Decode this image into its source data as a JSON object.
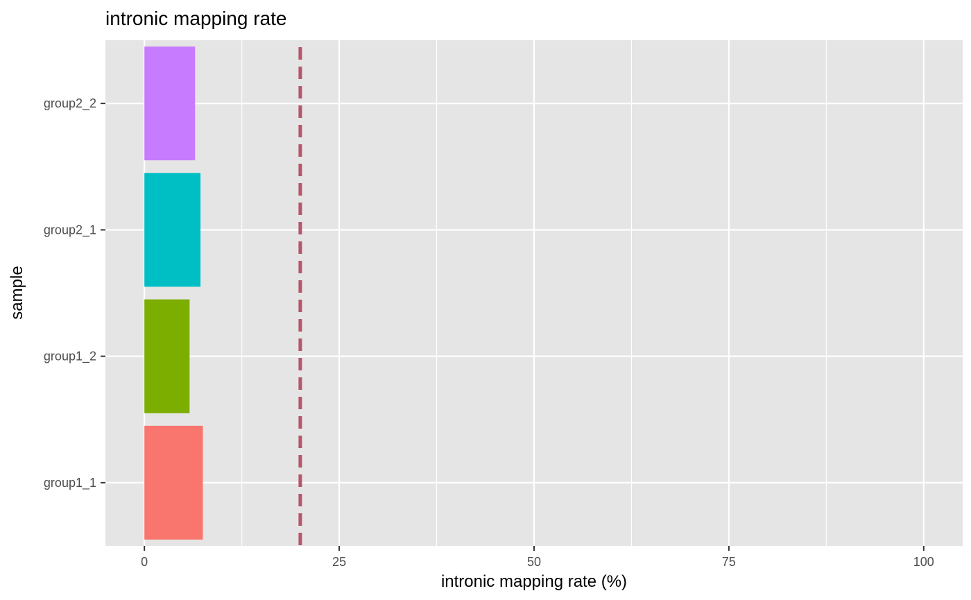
{
  "chart_data": {
    "type": "bar",
    "orientation": "horizontal",
    "title": "intronic mapping rate",
    "xlabel": "intronic mapping rate (%)",
    "ylabel": "sample",
    "categories": [
      "group1_1",
      "group1_2",
      "group2_1",
      "group2_2"
    ],
    "values": [
      7.5,
      5.8,
      7.2,
      6.5
    ],
    "bar_colors": [
      "#F8766D",
      "#7CAE00",
      "#00BFC4",
      "#C77CFF"
    ],
    "xlim": [
      -5,
      105
    ],
    "x_ticks": [
      0,
      25,
      50,
      75,
      100
    ],
    "reference_line": {
      "x": 20,
      "style": "dashed",
      "color": "#B5566B"
    },
    "grid": true,
    "legend": "none",
    "panel_background": "#E5E5E5"
  }
}
